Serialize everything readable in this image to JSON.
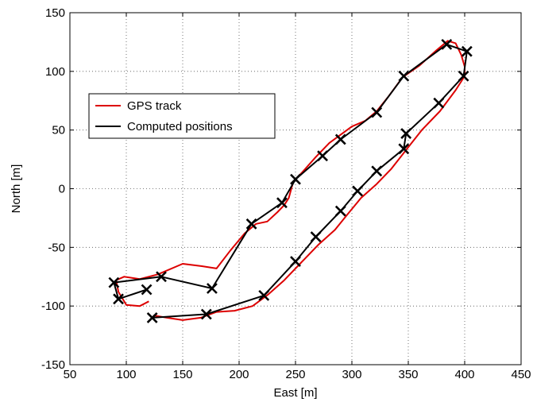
{
  "chart_data": {
    "type": "line",
    "title": "",
    "xlabel": "East [m]",
    "ylabel": "North [m]",
    "xlim": [
      50,
      450
    ],
    "ylim": [
      -150,
      150
    ],
    "x_ticks": [
      50,
      100,
      150,
      200,
      250,
      300,
      350,
      400,
      450
    ],
    "y_ticks": [
      -150,
      -100,
      -50,
      0,
      50,
      100,
      150
    ],
    "grid": true,
    "legend_position": "upper-left",
    "series": [
      {
        "name": "GPS track",
        "color": "#dd0000",
        "style": "line",
        "x": [
          120,
          112,
          100,
          93,
          91,
          98,
          112,
          128,
          150,
          167,
          180,
          192,
          205,
          215,
          225,
          234,
          240,
          244,
          248,
          256,
          268,
          280,
          290,
          300,
          312,
          322,
          332,
          345,
          360,
          375,
          385,
          392,
          397,
          400,
          400,
          392,
          378,
          362,
          348,
          335,
          322,
          308,
          296,
          285,
          270,
          255,
          240,
          226,
          212,
          196,
          180,
          166,
          150,
          136,
          124
        ],
        "y": [
          -96,
          -100,
          -99,
          -88,
          -78,
          -75,
          -77,
          -73,
          -64,
          -66,
          -68,
          -53,
          -38,
          -30,
          -28,
          -20,
          -14,
          -8,
          6,
          14,
          27,
          39,
          46,
          53,
          58,
          66,
          78,
          95,
          105,
          118,
          126,
          124,
          114,
          104,
          96,
          84,
          66,
          50,
          33,
          17,
          4,
          -8,
          -22,
          -35,
          -48,
          -63,
          -78,
          -90,
          -100,
          -104,
          -105,
          -110,
          -112,
          -110,
          -108
        ]
      },
      {
        "name": "Computed positions",
        "color": "#000000",
        "style": "line-x-markers",
        "x": [
          118,
          93,
          89,
          131,
          176,
          211,
          238,
          250,
          274,
          290,
          322,
          346,
          384,
          402,
          399,
          377,
          348,
          346,
          322,
          305,
          290,
          268,
          250,
          222,
          171,
          123
        ],
        "y": [
          -86,
          -94,
          -80,
          -75,
          -85,
          -30,
          -12,
          8,
          28,
          42,
          65,
          96,
          123,
          117,
          96,
          73,
          47,
          34,
          15,
          -2,
          -19,
          -41,
          -62,
          -91,
          -107,
          -110
        ]
      }
    ]
  }
}
